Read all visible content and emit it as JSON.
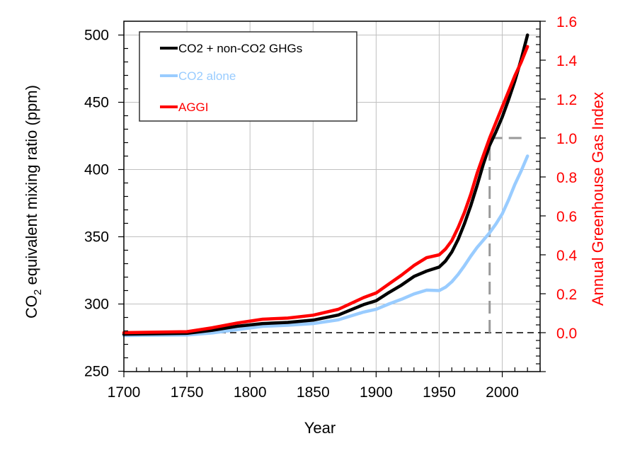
{
  "chart_data": {
    "type": "line",
    "title": "",
    "xlabel": "Year",
    "ylabel_main": "CO",
    "ylabel_sub": "2",
    "ylabel_rest": " equivalent mixing ratio (ppm)",
    "y2label": "Annual Greenhouse Gas Index",
    "xlim": [
      1700,
      2030
    ],
    "ylim": [
      250,
      500
    ],
    "y2lim": [
      -0.2,
      1.6
    ],
    "grid": true,
    "legend_position": "top-left",
    "x_ticks": [
      1700,
      1750,
      1800,
      1850,
      1900,
      1950,
      2000
    ],
    "x_tick_labels": [
      "1700",
      "1750",
      "1800",
      "1850",
      "1900",
      "1950",
      "2000"
    ],
    "y_ticks": [
      250,
      300,
      350,
      400,
      450,
      500
    ],
    "y_tick_labels": [
      "250",
      "300",
      "350",
      "400",
      "450",
      "500"
    ],
    "y2_ticks": [
      0.0,
      0.2,
      0.4,
      0.6,
      0.8,
      1.0,
      1.2,
      1.4,
      1.6
    ],
    "y2_tick_labels": [
      "0.0",
      "0.2",
      "0.4",
      "0.6",
      "0.8",
      "1.0",
      "1.2",
      "1.4",
      "1.6"
    ],
    "x": [
      1700,
      1750,
      1770,
      1790,
      1810,
      1830,
      1850,
      1870,
      1890,
      1900,
      1910,
      1920,
      1930,
      1940,
      1950,
      1955,
      1960,
      1965,
      1970,
      1975,
      1980,
      1985,
      1990,
      1995,
      2000,
      2005,
      2010,
      2015,
      2020
    ],
    "series": [
      {
        "name": "CO2 + non-CO2 GHGs",
        "axis": "left",
        "color": "#000000",
        "values": [
          277.6,
          278.2,
          280.5,
          283.5,
          285.5,
          286.3,
          288.0,
          291.8,
          299.5,
          302.4,
          308.5,
          314.0,
          320.5,
          324.5,
          327.5,
          332.0,
          338.7,
          348.0,
          359.7,
          373.0,
          388.0,
          404.0,
          418.0,
          428.0,
          439.0,
          452.0,
          466.0,
          482.0,
          500.0
        ]
      },
      {
        "name": "CO2 alone",
        "axis": "left",
        "color": "#99ccff",
        "values": [
          276.6,
          277.0,
          278.5,
          281.0,
          283.4,
          284.2,
          285.5,
          288.2,
          294.0,
          296.1,
          300.0,
          303.5,
          307.5,
          310.3,
          310.0,
          312.5,
          316.5,
          322.0,
          328.5,
          335.5,
          342.0,
          347.5,
          353.0,
          359.5,
          367.0,
          377.5,
          389.0,
          399.0,
          410.0
        ]
      },
      {
        "name": "AGGI",
        "axis": "right",
        "color": "#ff0000",
        "values": [
          0.0,
          0.005,
          0.025,
          0.05,
          0.069,
          0.075,
          0.09,
          0.12,
          0.18,
          0.204,
          0.25,
          0.295,
          0.345,
          0.385,
          0.4,
          0.43,
          0.473,
          0.54,
          0.618,
          0.71,
          0.818,
          0.91,
          1.0,
          1.08,
          1.16,
          1.24,
          1.32,
          1.39,
          1.47
        ]
      }
    ],
    "reference_lines": [
      {
        "name": "AGGI zero baseline",
        "axis": "right",
        "y": 0.0,
        "x_range": [
          1700,
          2030
        ],
        "color": "#000000",
        "style": "dashed"
      },
      {
        "name": "1990 marker vertical",
        "x": 1990,
        "y_range_right": [
          0.0,
          1.0
        ],
        "color": "#999999",
        "style": "dashed"
      },
      {
        "name": "AGGI 1.0 marker horizontal",
        "axis": "right",
        "y": 1.0,
        "x_range": [
          1990,
          2020
        ],
        "color": "#999999",
        "style": "dashed"
      }
    ]
  },
  "legend": [
    {
      "label": "CO2 + non-CO2 GHGs",
      "color": "#000000"
    },
    {
      "label": "CO2 alone",
      "color": "#99ccff"
    },
    {
      "label": "AGGI",
      "color": "#ff0000"
    }
  ]
}
